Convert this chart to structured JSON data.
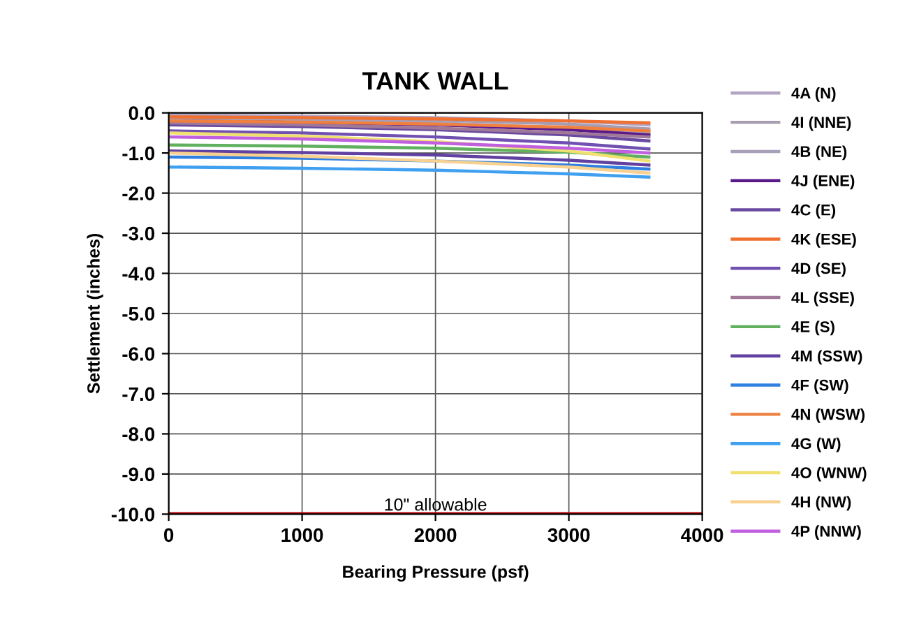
{
  "chart_data": {
    "type": "line",
    "title": "TANK WALL",
    "xlabel": "Bearing Pressure (psf)",
    "ylabel": "Settlement (inches)",
    "x": [
      0,
      1000,
      2000,
      3000,
      3600
    ],
    "series": [
      {
        "name": "4A (N)",
        "color": "#b4a4c4",
        "values": [
          -0.05,
          -0.08,
          -0.12,
          -0.2,
          -0.3
        ]
      },
      {
        "name": "4I (NNE)",
        "color": "#a89cb0",
        "values": [
          -0.1,
          -0.13,
          -0.18,
          -0.28,
          -0.4
        ]
      },
      {
        "name": "4B (NE)",
        "color": "#a8a0b8",
        "values": [
          -0.15,
          -0.18,
          -0.25,
          -0.38,
          -0.5
        ]
      },
      {
        "name": "4J (ENE)",
        "color": "#5a1a8a",
        "values": [
          -0.2,
          -0.24,
          -0.3,
          -0.42,
          -0.55
        ]
      },
      {
        "name": "4C (E)",
        "color": "#6a4aa0",
        "values": [
          -0.3,
          -0.34,
          -0.42,
          -0.55,
          -0.7
        ]
      },
      {
        "name": "4K (ESE)",
        "color": "#f07030",
        "values": [
          -0.1,
          -0.12,
          -0.15,
          -0.2,
          -0.25
        ]
      },
      {
        "name": "4D (SE)",
        "color": "#7050b0",
        "values": [
          -0.45,
          -0.5,
          -0.6,
          -0.75,
          -0.9
        ]
      },
      {
        "name": "4L (SSE)",
        "color": "#a07898",
        "values": [
          -0.25,
          -0.3,
          -0.38,
          -0.5,
          -0.6
        ]
      },
      {
        "name": "4E (S)",
        "color": "#60b060",
        "values": [
          -0.8,
          -0.83,
          -0.88,
          -0.98,
          -1.1
        ]
      },
      {
        "name": "4M (SSW)",
        "color": "#6040a0",
        "values": [
          -0.95,
          -0.99,
          -1.05,
          -1.18,
          -1.3
        ]
      },
      {
        "name": "4F (SW)",
        "color": "#3080e0",
        "values": [
          -1.1,
          -1.13,
          -1.2,
          -1.3,
          -1.4
        ]
      },
      {
        "name": "4N (WSW)",
        "color": "#f08040",
        "values": [
          -0.2,
          -0.23,
          -0.28,
          -0.36,
          -0.45
        ]
      },
      {
        "name": "4G (W)",
        "color": "#40a0f0",
        "values": [
          -1.35,
          -1.38,
          -1.43,
          -1.52,
          -1.6
        ]
      },
      {
        "name": "4O (WNW)",
        "color": "#f0e070",
        "values": [
          -0.5,
          -0.58,
          -0.72,
          -0.95,
          -1.2
        ]
      },
      {
        "name": "4H (NW)",
        "color": "#f8d090",
        "values": [
          -1.0,
          -1.08,
          -1.2,
          -1.35,
          -1.5
        ]
      },
      {
        "name": "4P (NNW)",
        "color": "#c060e0",
        "values": [
          -0.6,
          -0.65,
          -0.75,
          -0.88,
          -1.0
        ]
      }
    ],
    "xlim": [
      0,
      4000
    ],
    "xticks": [
      0,
      1000,
      2000,
      3000,
      4000
    ],
    "ylim": [
      -10,
      0
    ],
    "yticks": [
      {
        "value": -10,
        "label": "-10.0"
      },
      {
        "value": -9,
        "label": "-9.0"
      },
      {
        "value": -8,
        "label": "-8.0"
      },
      {
        "value": -7,
        "label": "-7.0"
      },
      {
        "value": -6,
        "label": "-6.0"
      },
      {
        "value": -5,
        "label": "-5.0"
      },
      {
        "value": -4,
        "label": "-4.0"
      },
      {
        "value": -3,
        "label": "-3.0"
      },
      {
        "value": -2,
        "label": "-2.0"
      },
      {
        "value": -1,
        "label": "-1.0"
      },
      {
        "value": 0,
        "label": "0.0"
      }
    ],
    "ref_lines": [
      {
        "axis": "y",
        "value": -10,
        "label": "10\" allowable",
        "color": "#c00000"
      }
    ],
    "grid": true,
    "legend": "right",
    "line_style": "solid",
    "marker": "none"
  }
}
